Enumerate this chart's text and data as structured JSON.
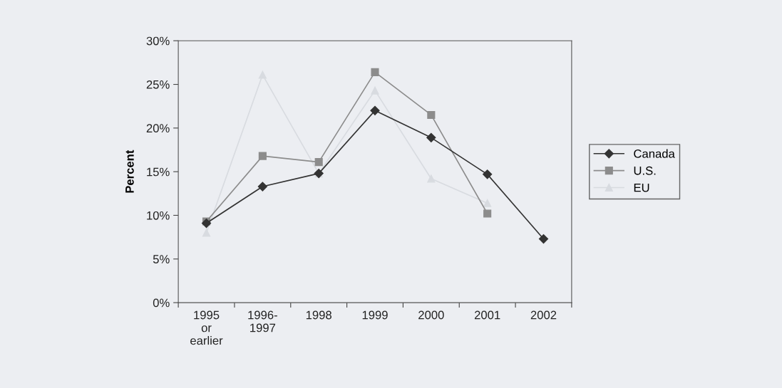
{
  "chart_data": {
    "type": "line",
    "ylabel": "Percent",
    "categories": [
      "1995\nor\nearlier",
      "1996-\n1997",
      "1998",
      "1999",
      "2000",
      "2001",
      "2002"
    ],
    "series": [
      {
        "name": "Canada",
        "color": "#333333",
        "marker": "diamond",
        "values": [
          9.1,
          13.3,
          14.8,
          22.0,
          18.9,
          14.7,
          7.3
        ]
      },
      {
        "name": "U.S.",
        "color": "#8c8c8c",
        "marker": "square",
        "values": [
          9.3,
          16.8,
          16.1,
          26.4,
          21.5,
          10.2,
          null
        ]
      },
      {
        "name": "EU",
        "color": "#d8dbe0",
        "marker": "triangle",
        "values": [
          8.0,
          26.1,
          14.8,
          24.3,
          14.2,
          11.4,
          null
        ]
      }
    ],
    "ylim": [
      0,
      30
    ],
    "yticks": [
      {
        "value": 0,
        "label": "0%"
      },
      {
        "value": 5,
        "label": "5%"
      },
      {
        "value": 10,
        "label": "10%"
      },
      {
        "value": 15,
        "label": "15%"
      },
      {
        "value": 20,
        "label": "20%"
      },
      {
        "value": 25,
        "label": "25%"
      },
      {
        "value": 30,
        "label": "30%"
      }
    ],
    "grid": false,
    "legend": "right"
  }
}
